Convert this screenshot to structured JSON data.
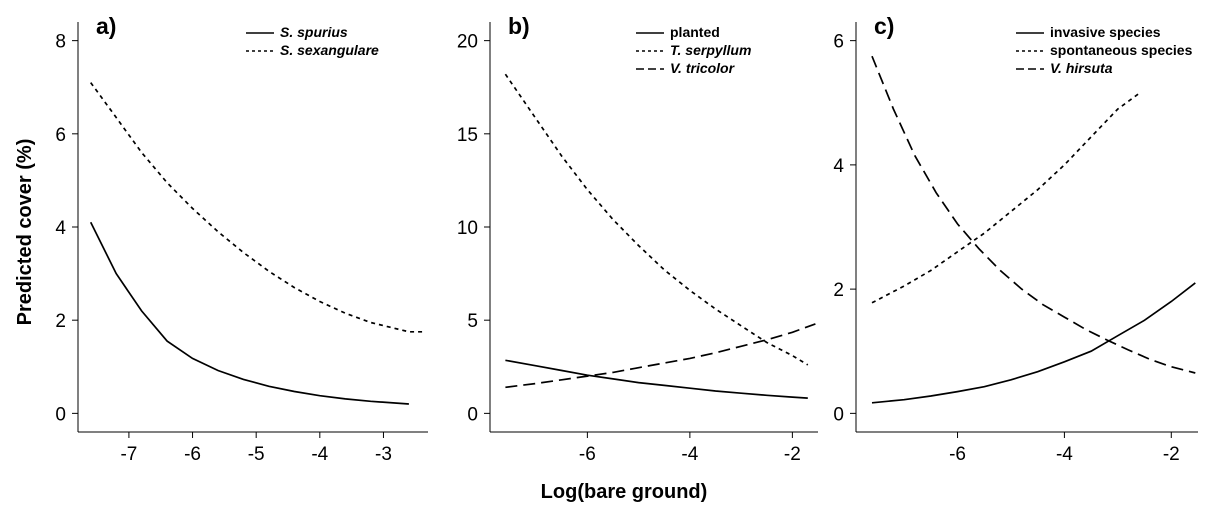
{
  "figure": {
    "ylabel": "Predicted cover (%)",
    "xlabel": "Log(bare ground)"
  },
  "chart_data": [
    {
      "type": "line",
      "panel_label": "a)",
      "xlim": [
        -7.8,
        -2.3
      ],
      "ylim": [
        -0.4,
        8.4
      ],
      "xticks": [
        -7,
        -6,
        -5,
        -4,
        -3
      ],
      "yticks": [
        0,
        2,
        4,
        6,
        8
      ],
      "legend": "top-right",
      "series": [
        {
          "name": "S. spurius",
          "italic": true,
          "style": "solid",
          "x": [
            -7.6,
            -7.2,
            -6.8,
            -6.4,
            -6.0,
            -5.6,
            -5.2,
            -4.8,
            -4.4,
            -4.0,
            -3.6,
            -3.2,
            -2.6
          ],
          "y": [
            4.1,
            3.0,
            2.2,
            1.55,
            1.18,
            0.92,
            0.73,
            0.58,
            0.47,
            0.38,
            0.31,
            0.26,
            0.2
          ]
        },
        {
          "name": "S. sexangulare",
          "italic": true,
          "style": "dotted",
          "x": [
            -7.6,
            -7.2,
            -6.8,
            -6.4,
            -6.0,
            -5.6,
            -5.2,
            -4.8,
            -4.4,
            -4.0,
            -3.6,
            -3.2,
            -2.6,
            -2.35
          ],
          "y": [
            7.1,
            6.35,
            5.6,
            4.95,
            4.4,
            3.9,
            3.45,
            3.05,
            2.7,
            2.4,
            2.15,
            1.95,
            1.75,
            1.75
          ]
        }
      ]
    },
    {
      "type": "line",
      "panel_label": "b)",
      "xlim": [
        -7.9,
        -1.5
      ],
      "ylim": [
        -1.0,
        21.0
      ],
      "xticks": [
        -6,
        -4,
        -2
      ],
      "yticks": [
        0,
        5,
        10,
        15,
        20
      ],
      "legend": "top-right",
      "series": [
        {
          "name": "planted",
          "italic": false,
          "style": "solid",
          "x": [
            -7.6,
            -7.0,
            -6.5,
            -6.0,
            -5.5,
            -5.0,
            -4.5,
            -4.0,
            -3.5,
            -3.0,
            -2.5,
            -2.0,
            -1.7
          ],
          "y": [
            2.85,
            2.55,
            2.3,
            2.05,
            1.85,
            1.65,
            1.5,
            1.35,
            1.2,
            1.08,
            0.97,
            0.87,
            0.82
          ]
        },
        {
          "name": "T. serpyllum",
          "italic": true,
          "style": "dotted",
          "x": [
            -7.6,
            -7.0,
            -6.5,
            -6.0,
            -5.5,
            -5.0,
            -4.5,
            -4.0,
            -3.5,
            -3.0,
            -2.5,
            -2.0,
            -1.7
          ],
          "y": [
            18.2,
            15.8,
            13.8,
            12.0,
            10.4,
            9.0,
            7.7,
            6.6,
            5.6,
            4.7,
            3.8,
            3.1,
            2.6
          ]
        },
        {
          "name": "V. tricolor",
          "italic": true,
          "style": "dashed",
          "x": [
            -7.6,
            -7.0,
            -6.5,
            -6.0,
            -5.5,
            -5.0,
            -4.5,
            -4.0,
            -3.5,
            -3.0,
            -2.5,
            -2.0,
            -1.55
          ],
          "y": [
            1.4,
            1.6,
            1.8,
            2.0,
            2.2,
            2.45,
            2.7,
            2.95,
            3.25,
            3.6,
            3.95,
            4.35,
            4.8
          ]
        }
      ]
    },
    {
      "type": "line",
      "panel_label": "c)",
      "xlim": [
        -7.9,
        -1.5
      ],
      "ylim": [
        -0.3,
        6.3
      ],
      "xticks": [
        -6,
        -4,
        -2
      ],
      "yticks": [
        0,
        2,
        4,
        6
      ],
      "legend": "top-right",
      "series": [
        {
          "name": "invasive species",
          "italic": false,
          "style": "solid",
          "x": [
            -7.6,
            -7.0,
            -6.5,
            -6.0,
            -5.5,
            -5.0,
            -4.5,
            -4.0,
            -3.5,
            -3.0,
            -2.5,
            -2.0,
            -1.55
          ],
          "y": [
            0.17,
            0.22,
            0.28,
            0.35,
            0.43,
            0.54,
            0.67,
            0.83,
            1.0,
            1.25,
            1.5,
            1.8,
            2.1
          ]
        },
        {
          "name": "spontaneous species",
          "italic": false,
          "style": "dotted",
          "x": [
            -7.6,
            -7.0,
            -6.5,
            -6.0,
            -5.5,
            -5.0,
            -4.5,
            -4.0,
            -3.5,
            -3.0,
            -2.6
          ],
          "y": [
            1.78,
            2.05,
            2.3,
            2.6,
            2.9,
            3.25,
            3.6,
            4.0,
            4.45,
            4.9,
            5.15
          ]
        },
        {
          "name": "V. hirsuta",
          "italic": true,
          "style": "dashed",
          "x": [
            -7.6,
            -7.2,
            -6.8,
            -6.4,
            -6.0,
            -5.6,
            -5.2,
            -4.8,
            -4.4,
            -4.0,
            -3.6,
            -3.2,
            -2.8,
            -2.4,
            -2.0,
            -1.55
          ],
          "y": [
            5.75,
            4.9,
            4.15,
            3.55,
            3.05,
            2.65,
            2.3,
            2.0,
            1.75,
            1.55,
            1.35,
            1.18,
            1.02,
            0.87,
            0.75,
            0.65
          ]
        }
      ]
    }
  ]
}
